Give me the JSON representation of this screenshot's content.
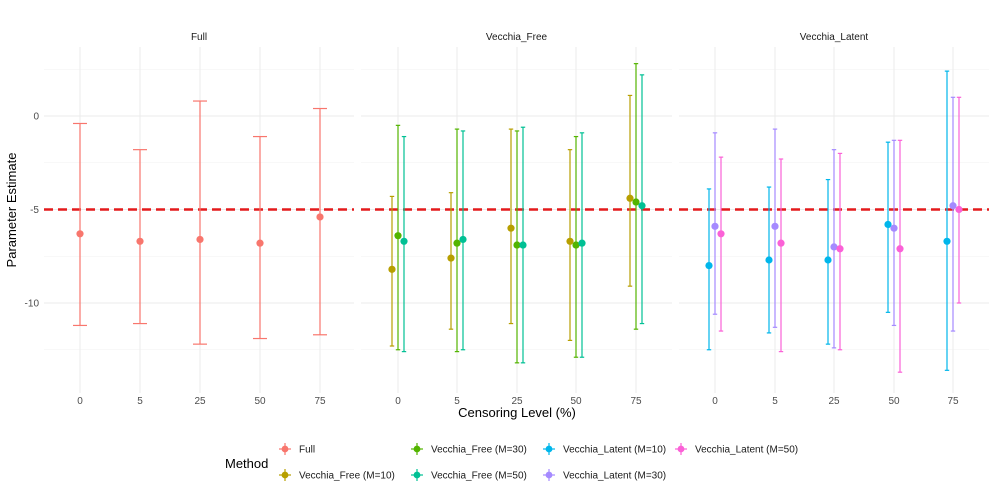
{
  "chart_data": {
    "type": "scatter",
    "subtype": "point-with-errorbars, faceted",
    "title": "",
    "xlabel": "Censoring Level (%)",
    "ylabel": "Parameter Estimate",
    "ylim": [
      -13.8,
      3.3
    ],
    "y_ticks": [
      0,
      -5,
      -10
    ],
    "y_tick_labels": [
      "0",
      "-5",
      "-10"
    ],
    "x_categories": [
      "0",
      "5",
      "25",
      "50",
      "75"
    ],
    "reference_line": {
      "y": -5,
      "color": "#e41a1c",
      "style": "dashed"
    },
    "grid": true,
    "facets": [
      {
        "key": "full",
        "title": "Full",
        "methods": [
          "full"
        ]
      },
      {
        "key": "free",
        "title": "Vecchia_Free",
        "methods": [
          "free10",
          "free30",
          "free50"
        ]
      },
      {
        "key": "latent",
        "title": "Vecchia_Latent",
        "methods": [
          "latent10",
          "latent30",
          "latent50"
        ]
      }
    ],
    "legend": {
      "title": "Method",
      "position": "bottom",
      "layout": [
        [
          "full",
          "free10"
        ],
        [
          "free30",
          "free50"
        ],
        [
          "latent10",
          "latent30"
        ],
        [
          "latent50"
        ]
      ]
    },
    "series": [
      {
        "key": "full",
        "name": "Full",
        "color": "#F8766D",
        "estimate": [
          -6.3,
          -6.7,
          -6.6,
          -6.8,
          -5.4
        ],
        "lower": [
          -11.2,
          -11.1,
          -12.2,
          -11.9,
          -11.7
        ],
        "upper": [
          -0.4,
          -1.8,
          0.8,
          -1.1,
          0.4
        ]
      },
      {
        "key": "free10",
        "name": "Vecchia_Free (M=10)",
        "color": "#B79F00",
        "estimate": [
          -8.2,
          -7.6,
          -6.0,
          -6.7,
          -4.4
        ],
        "lower": [
          -12.3,
          -11.4,
          -11.1,
          -12.0,
          -9.1
        ],
        "upper": [
          -4.3,
          -4.1,
          -0.7,
          -1.8,
          1.1
        ]
      },
      {
        "key": "free30",
        "name": "Vecchia_Free (M=30)",
        "color": "#53B400",
        "estimate": [
          -6.4,
          -6.8,
          -6.9,
          -6.9,
          -4.6
        ],
        "lower": [
          -12.5,
          -12.6,
          -13.2,
          -12.9,
          -11.4
        ],
        "upper": [
          -0.5,
          -0.7,
          -0.8,
          -1.1,
          2.8
        ]
      },
      {
        "key": "free50",
        "name": "Vecchia_Free (M=50)",
        "color": "#00C094",
        "estimate": [
          -6.7,
          -6.6,
          -6.9,
          -6.8,
          -4.8
        ],
        "lower": [
          -12.6,
          -12.5,
          -13.2,
          -12.9,
          -11.1
        ],
        "upper": [
          -1.1,
          -0.8,
          -0.6,
          -0.9,
          2.2
        ]
      },
      {
        "key": "latent10",
        "name": "Vecchia_Latent (M=10)",
        "color": "#00B6EB",
        "estimate": [
          -8.0,
          -7.7,
          -7.7,
          -5.8,
          -6.7
        ],
        "lower": [
          -12.5,
          -11.6,
          -12.2,
          -10.5,
          -13.6
        ],
        "upper": [
          -3.9,
          -3.8,
          -3.4,
          -1.4,
          2.4
        ]
      },
      {
        "key": "latent30",
        "name": "Vecchia_Latent (M=30)",
        "color": "#A58AFF",
        "estimate": [
          -5.9,
          -5.9,
          -7.0,
          -6.0,
          -4.8
        ],
        "lower": [
          -10.6,
          -11.3,
          -12.4,
          -11.2,
          -11.5
        ],
        "upper": [
          -0.9,
          -0.7,
          -1.8,
          -1.3,
          1.0
        ]
      },
      {
        "key": "latent50",
        "name": "Vecchia_Latent (M=50)",
        "color": "#FB61D7",
        "estimate": [
          -6.3,
          -6.8,
          -7.1,
          -7.1,
          -5.0
        ],
        "lower": [
          -11.5,
          -12.6,
          -12.5,
          -13.7,
          -10.0
        ],
        "upper": [
          -2.2,
          -2.3,
          -2.0,
          -1.3,
          1.0
        ]
      }
    ]
  }
}
